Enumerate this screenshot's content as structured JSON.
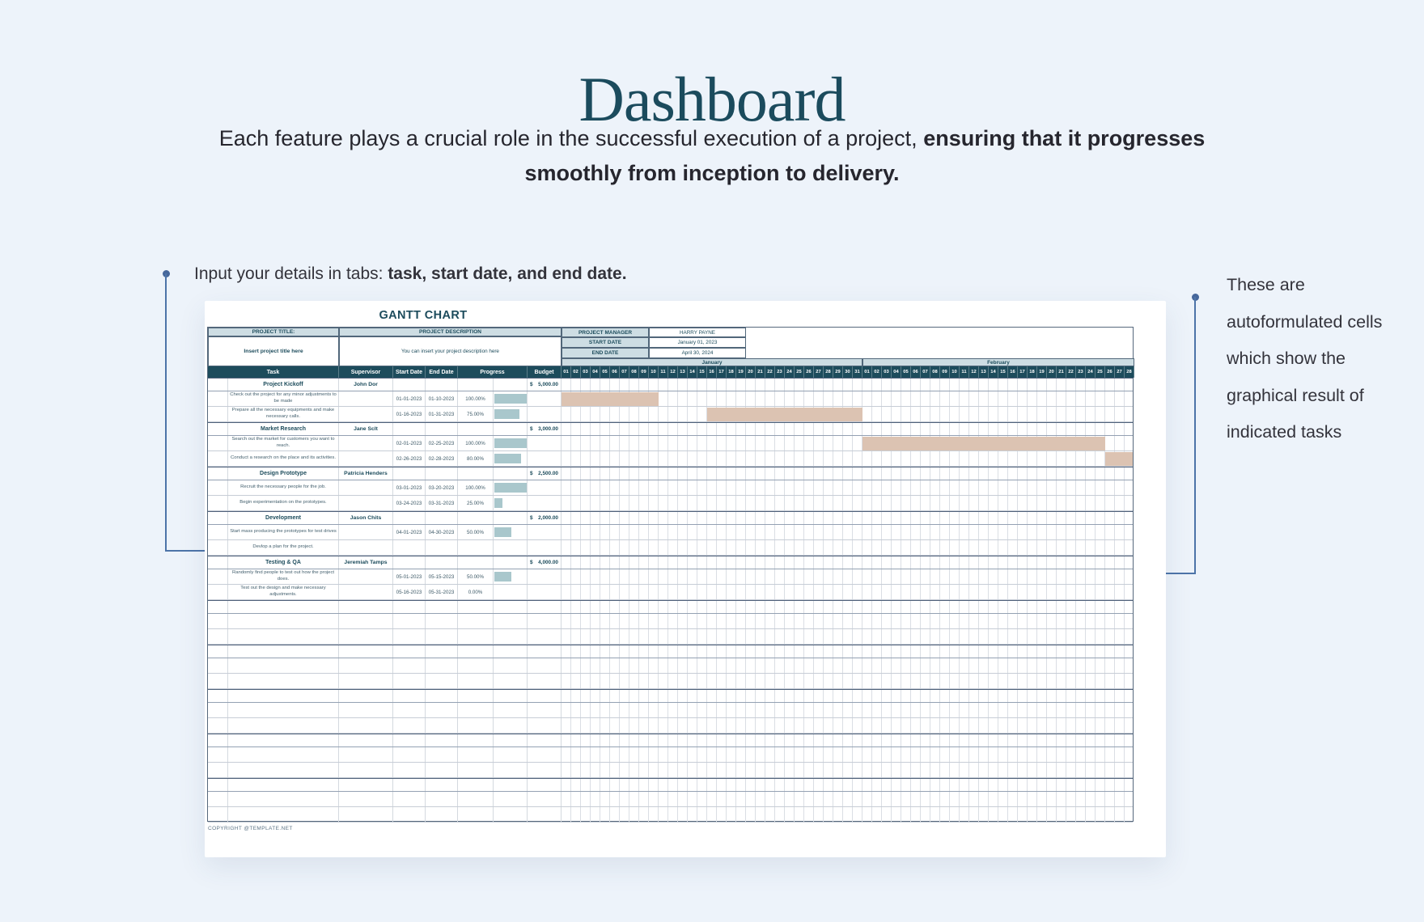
{
  "page": {
    "title": "Dashboard",
    "subtitle": {
      "line1_regular": "Each feature plays a crucial role in the successful execution of a project, ",
      "line1_bold": "ensuring that it progresses",
      "line2_bold": "smoothly from inception to delivery."
    }
  },
  "annotations": {
    "left": {
      "regular": "Input your details in tabs: ",
      "bold": "task, start date, and end date."
    },
    "right": {
      "text": "These are autoformulated cells which show the graphical result of indicated tasks"
    },
    "accent_color": "#4d74a8"
  },
  "gantt": {
    "title": "GANTT CHART",
    "info": {
      "project_title_label": "PROJECT TITLE:",
      "project_title_placeholder": "Insert project title here",
      "project_description_label": "PROJECT DESCRIPTION",
      "project_description_placeholder": "You can insert your project description here",
      "manager_label": "PROJECT MANAGER",
      "manager_value": "HARRY PAYNE",
      "start_label": "START DATE",
      "start_value": "January 01, 2023",
      "end_label": "END DATE",
      "end_value": "April 30, 2024"
    },
    "columns": [
      "Task",
      "Supervisor",
      "Start Date",
      "End Date",
      "Progress",
      "Budget"
    ],
    "months": [
      {
        "name": "January",
        "days": 31
      },
      {
        "name": "February",
        "days": 28
      }
    ],
    "rows": [
      {
        "type": "section",
        "task": "Project Kickoff",
        "supervisor": "John Dor",
        "budget": "5,000.00"
      },
      {
        "type": "task",
        "task": "Check out the project for any minor adjustments to be made",
        "start": "01-01-2023",
        "end": "01-10-2023",
        "progress": "100.00%",
        "progress_pct": 100,
        "bar": [
          1,
          10
        ]
      },
      {
        "type": "task",
        "task": "Prepare all the necessary equipments and make necessary calls.",
        "start": "01-16-2023",
        "end": "01-31-2023",
        "progress": "75.00%",
        "progress_pct": 75,
        "bar": [
          16,
          31
        ]
      },
      {
        "type": "section",
        "task": "Market Research",
        "supervisor": "Jane Sclt",
        "budget": "3,000.00"
      },
      {
        "type": "task",
        "task": "Search out the market for customers you want to reach.",
        "start": "02-01-2023",
        "end": "02-25-2023",
        "progress": "100.00%",
        "progress_pct": 100,
        "bar": [
          32,
          56
        ]
      },
      {
        "type": "task",
        "task": "Conduct a research on the place and its activities.",
        "start": "02-26-2023",
        "end": "02-28-2023",
        "progress": "80.00%",
        "progress_pct": 80,
        "bar": [
          57,
          59
        ]
      },
      {
        "type": "section",
        "task": "Design Prototype",
        "supervisor": "Patricia Henders",
        "budget": "2,500.00"
      },
      {
        "type": "task",
        "task": "Recruit the necessary people for the job.",
        "start": "03-01-2023",
        "end": "03-20-2023",
        "progress": "100.00%",
        "progress_pct": 100,
        "bar": null
      },
      {
        "type": "task",
        "task": "Begin experimentation on the prototypes.",
        "start": "03-24-2023",
        "end": "03-31-2023",
        "progress": "25.00%",
        "progress_pct": 25,
        "bar": null
      },
      {
        "type": "section",
        "task": "Development",
        "supervisor": "Jason Chits",
        "budget": "2,000.00"
      },
      {
        "type": "task",
        "task": "Start mass producing the prototypes for test drives",
        "start": "04-01-2023",
        "end": "04-30-2023",
        "progress": "50.00%",
        "progress_pct": 50,
        "bar": null
      },
      {
        "type": "task",
        "task": "Devlop a plan for the project.",
        "start": "",
        "end": "",
        "progress": "",
        "progress_pct": null,
        "bar": null
      },
      {
        "type": "section",
        "task": "Testing & QA",
        "supervisor": "Jeremiah Tamps",
        "budget": "4,000.00"
      },
      {
        "type": "task",
        "task": "Randomly find people to test out how the project does.",
        "start": "05-01-2023",
        "end": "05-15-2023",
        "progress": "50.00%",
        "progress_pct": 50,
        "bar": null
      },
      {
        "type": "task",
        "task": "Test out the design and make necessary adjustments.",
        "start": "05-16-2023",
        "end": "05-31-2023",
        "progress": "0.00%",
        "progress_pct": 0,
        "bar": null
      }
    ],
    "empty_row_groups": 5,
    "currency_symbol": "$",
    "copyright": "COPYRIGHT @TEMPLATE.NET",
    "colors": {
      "header_dark": "#1d4c5c",
      "header_light": "#cddde3",
      "gantt_bar": "#dcc3b2",
      "progress_bar": "#a9c7cc"
    }
  }
}
